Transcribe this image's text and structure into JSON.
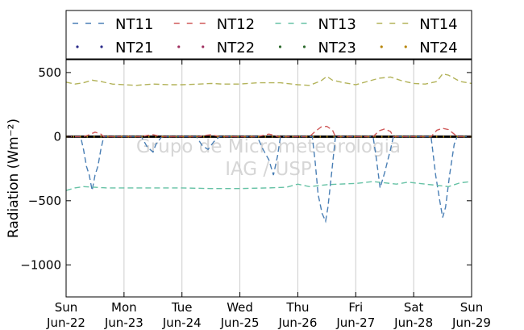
{
  "chart_data": {
    "type": "line",
    "ylabel": "Radiation (Wm⁻²)",
    "ylim": [
      -1250,
      600
    ],
    "yticks": [
      500,
      0,
      -500,
      -1000
    ],
    "ytick_labels": [
      "500",
      "0",
      "−500",
      "−1000"
    ],
    "xlim": [
      0,
      7
    ],
    "xticks": [
      0,
      1,
      2,
      3,
      4,
      5,
      6,
      7
    ],
    "xtick_labels": [
      [
        "Sun",
        "Jun-22"
      ],
      [
        "Mon",
        "Jun-23"
      ],
      [
        "Tue",
        "Jun-24"
      ],
      [
        "Wed",
        "Jun-25"
      ],
      [
        "Thu",
        "Jun-26"
      ],
      [
        "Fri",
        "Jun-27"
      ],
      [
        "Sat",
        "Jun-28"
      ],
      [
        "Sun",
        "Jun-29"
      ]
    ],
    "grid": "vertical",
    "legend": {
      "placement": "top",
      "columns": 4
    },
    "watermark": [
      "Grupo de Micrometeorologia",
      "IAG / USP"
    ],
    "series": [
      {
        "name": "NT11",
        "style": "dashed",
        "color": "#4a7fb5",
        "points": [
          [
            0,
            0
          ],
          [
            0.25,
            0
          ],
          [
            0.3,
            -100
          ],
          [
            0.35,
            -230
          ],
          [
            0.4,
            -300
          ],
          [
            0.45,
            -420
          ],
          [
            0.5,
            -300
          ],
          [
            0.55,
            -230
          ],
          [
            0.6,
            -100
          ],
          [
            0.65,
            0
          ],
          [
            1,
            0
          ],
          [
            1.3,
            0
          ],
          [
            1.4,
            -80
          ],
          [
            1.5,
            -120
          ],
          [
            1.55,
            -60
          ],
          [
            1.65,
            0
          ],
          [
            2,
            0
          ],
          [
            2.25,
            0
          ],
          [
            2.35,
            -70
          ],
          [
            2.45,
            -100
          ],
          [
            2.55,
            -40
          ],
          [
            2.65,
            0
          ],
          [
            3,
            0
          ],
          [
            3.3,
            0
          ],
          [
            3.4,
            -100
          ],
          [
            3.5,
            -180
          ],
          [
            3.58,
            -300
          ],
          [
            3.65,
            -150
          ],
          [
            3.7,
            0
          ],
          [
            4,
            0
          ],
          [
            4.25,
            0
          ],
          [
            4.3,
            -200
          ],
          [
            4.35,
            -450
          ],
          [
            4.42,
            -600
          ],
          [
            4.48,
            -660
          ],
          [
            4.52,
            -550
          ],
          [
            4.58,
            -300
          ],
          [
            4.65,
            0
          ],
          [
            5,
            0
          ],
          [
            5.3,
            0
          ],
          [
            5.35,
            -150
          ],
          [
            5.42,
            -400
          ],
          [
            5.5,
            -280
          ],
          [
            5.6,
            -100
          ],
          [
            5.65,
            0
          ],
          [
            6,
            0
          ],
          [
            6.3,
            0
          ],
          [
            6.38,
            -300
          ],
          [
            6.45,
            -500
          ],
          [
            6.5,
            -630
          ],
          [
            6.55,
            -550
          ],
          [
            6.62,
            -300
          ],
          [
            6.7,
            -60
          ],
          [
            6.75,
            0
          ],
          [
            7,
            0
          ]
        ]
      },
      {
        "name": "NT12",
        "style": "dashed",
        "color": "#d05a5a",
        "points": [
          [
            0,
            0
          ],
          [
            0.3,
            0
          ],
          [
            0.4,
            15
          ],
          [
            0.5,
            35
          ],
          [
            0.6,
            20
          ],
          [
            0.65,
            0
          ],
          [
            1,
            0
          ],
          [
            1.3,
            0
          ],
          [
            1.4,
            10
          ],
          [
            1.5,
            15
          ],
          [
            1.6,
            5
          ],
          [
            1.65,
            0
          ],
          [
            2,
            0
          ],
          [
            2.3,
            0
          ],
          [
            2.4,
            10
          ],
          [
            2.5,
            15
          ],
          [
            2.6,
            5
          ],
          [
            2.65,
            0
          ],
          [
            3,
            0
          ],
          [
            3.3,
            0
          ],
          [
            3.4,
            10
          ],
          [
            3.5,
            20
          ],
          [
            3.6,
            10
          ],
          [
            3.65,
            0
          ],
          [
            4,
            0
          ],
          [
            4.2,
            0
          ],
          [
            4.3,
            40
          ],
          [
            4.4,
            75
          ],
          [
            4.5,
            80
          ],
          [
            4.6,
            50
          ],
          [
            4.65,
            0
          ],
          [
            5,
            0
          ],
          [
            5.3,
            0
          ],
          [
            5.4,
            45
          ],
          [
            5.5,
            60
          ],
          [
            5.6,
            40
          ],
          [
            5.65,
            0
          ],
          [
            6,
            0
          ],
          [
            6.3,
            0
          ],
          [
            6.4,
            50
          ],
          [
            6.5,
            65
          ],
          [
            6.6,
            55
          ],
          [
            6.7,
            20
          ],
          [
            6.75,
            0
          ],
          [
            7,
            0
          ]
        ]
      },
      {
        "name": "NT13",
        "style": "dashed",
        "color": "#66c2a5",
        "points": [
          [
            0,
            -420
          ],
          [
            0.15,
            -400
          ],
          [
            0.3,
            -390
          ],
          [
            0.5,
            -395
          ],
          [
            0.7,
            -400
          ],
          [
            1,
            -400
          ],
          [
            1.5,
            -400
          ],
          [
            2,
            -400
          ],
          [
            2.5,
            -405
          ],
          [
            3,
            -405
          ],
          [
            3.5,
            -400
          ],
          [
            3.8,
            -395
          ],
          [
            4,
            -370
          ],
          [
            4.2,
            -390
          ],
          [
            4.4,
            -380
          ],
          [
            4.5,
            -375
          ],
          [
            4.7,
            -370
          ],
          [
            5,
            -365
          ],
          [
            5.3,
            -350
          ],
          [
            5.5,
            -360
          ],
          [
            5.7,
            -370
          ],
          [
            5.9,
            -355
          ],
          [
            6,
            -360
          ],
          [
            6.2,
            -370
          ],
          [
            6.4,
            -380
          ],
          [
            6.6,
            -390
          ],
          [
            6.8,
            -360
          ],
          [
            7,
            -350
          ]
        ]
      },
      {
        "name": "NT14",
        "style": "dashed",
        "color": "#b3b35a",
        "points": [
          [
            0,
            425
          ],
          [
            0.15,
            410
          ],
          [
            0.3,
            420
          ],
          [
            0.45,
            440
          ],
          [
            0.6,
            430
          ],
          [
            0.8,
            410
          ],
          [
            1,
            405
          ],
          [
            1.2,
            400
          ],
          [
            1.5,
            410
          ],
          [
            1.8,
            405
          ],
          [
            2,
            405
          ],
          [
            2.3,
            410
          ],
          [
            2.5,
            415
          ],
          [
            2.7,
            410
          ],
          [
            3,
            410
          ],
          [
            3.3,
            420
          ],
          [
            3.5,
            420
          ],
          [
            3.7,
            420
          ],
          [
            4,
            405
          ],
          [
            4.2,
            400
          ],
          [
            4.4,
            435
          ],
          [
            4.5,
            470
          ],
          [
            4.6,
            440
          ],
          [
            4.8,
            420
          ],
          [
            5,
            405
          ],
          [
            5.2,
            430
          ],
          [
            5.4,
            455
          ],
          [
            5.6,
            465
          ],
          [
            5.8,
            435
          ],
          [
            6,
            415
          ],
          [
            6.2,
            410
          ],
          [
            6.4,
            430
          ],
          [
            6.5,
            490
          ],
          [
            6.6,
            480
          ],
          [
            6.8,
            430
          ],
          [
            7,
            415
          ]
        ]
      },
      {
        "name": "NT21",
        "style": "dotted",
        "color": "#2b2b8a",
        "points": [
          [
            0,
            0
          ],
          [
            7,
            0
          ]
        ]
      },
      {
        "name": "NT22",
        "style": "dotted",
        "color": "#a03060",
        "points": [
          [
            0,
            0
          ],
          [
            7,
            0
          ]
        ]
      },
      {
        "name": "NT23",
        "style": "dotted",
        "color": "#2e6b2e",
        "points": [
          [
            0,
            0
          ],
          [
            7,
            0
          ]
        ]
      },
      {
        "name": "NT24",
        "style": "dotted",
        "color": "#b8860b",
        "points": [
          [
            0,
            0
          ],
          [
            7,
            0
          ]
        ]
      }
    ]
  }
}
